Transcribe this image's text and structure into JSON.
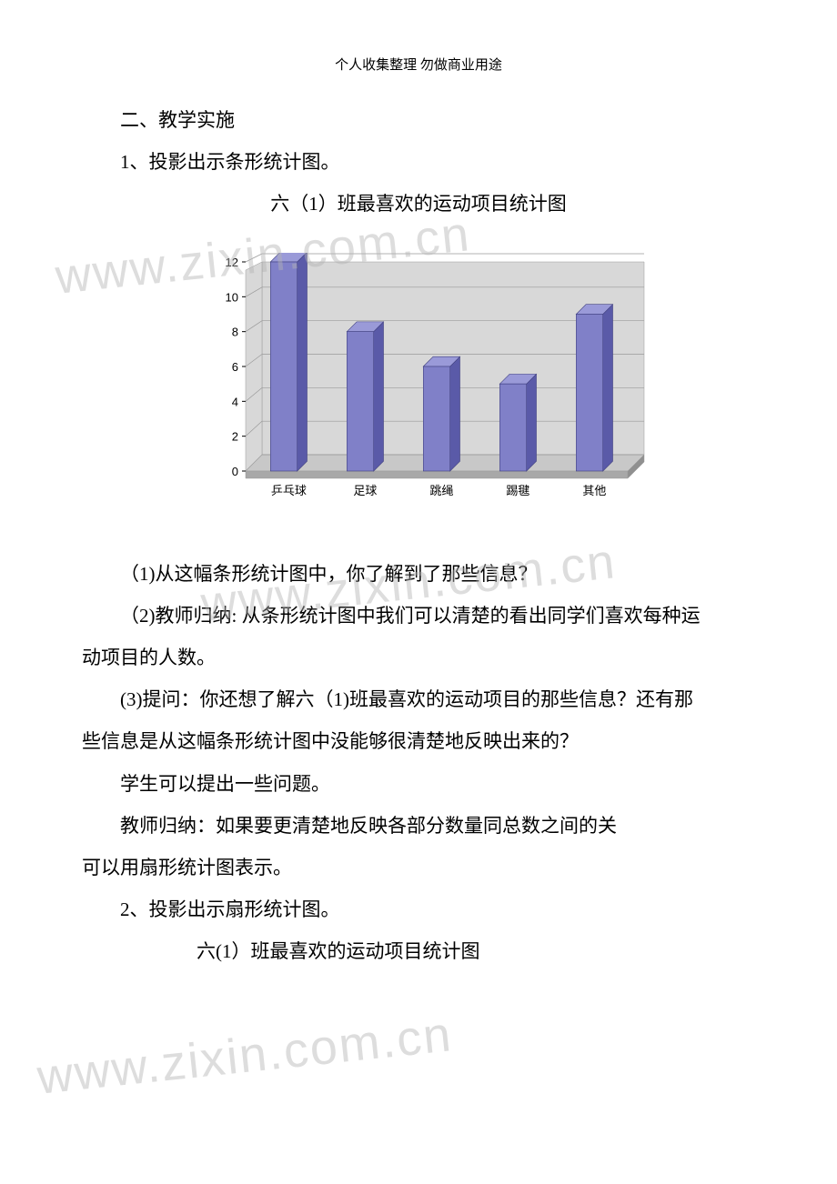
{
  "header": "个人收集整理  勿做商业用途",
  "watermark": "www.zixin.com.cn",
  "lines": {
    "l1": "二、教学实施",
    "l2": "1、投影出示条形统计图。",
    "title1": "六（1）班最喜欢的运动项目统计图",
    "q1": "（1)从这幅条形统计图中，你了解到了那些信息？",
    "q2a": "（2)教师归纳: 从条形统计图中我们可以清楚的看出同学们喜欢每种运",
    "q2b": "动项目的人数。",
    "q3a": "(3)提问：你还想了解六（1)班最喜欢的运动项目的那些信息？还有那",
    "q3b": "些信息是从这幅条形统计图中没能够很清楚地反映出来的？",
    "s1": "学生可以提出一些问题。",
    "s2": "教师归纳：如果要更清楚地反映各部分数量同总数之间的关",
    "s3": "可以用扇形统计图表示。",
    "l3": "2、投影出示扇形统计图。",
    "title2": "六(1）班最喜欢的运动项目统计图"
  },
  "chart": {
    "type": "bar",
    "categories": [
      "乒乓球",
      "足球",
      "跳绳",
      "踢毽",
      "其他"
    ],
    "values": [
      12,
      8,
      6,
      5,
      9
    ],
    "ylim": [
      0,
      12
    ],
    "ytick_step": 2,
    "bar_face_color": "#8080c8",
    "bar_side_color": "#5a5aa8",
    "bar_top_color": "#9a9ad8",
    "floor_color": "#c8c8c8",
    "floor_side_color": "#a8a8a8",
    "back_wall_color": "#d8d8d8",
    "grid_color": "#9a9a9a",
    "axis_label_fontsize": 13,
    "tick_label_fontsize": 13,
    "text_color": "#000000",
    "bar_width": 0.35,
    "depth": 18
  }
}
